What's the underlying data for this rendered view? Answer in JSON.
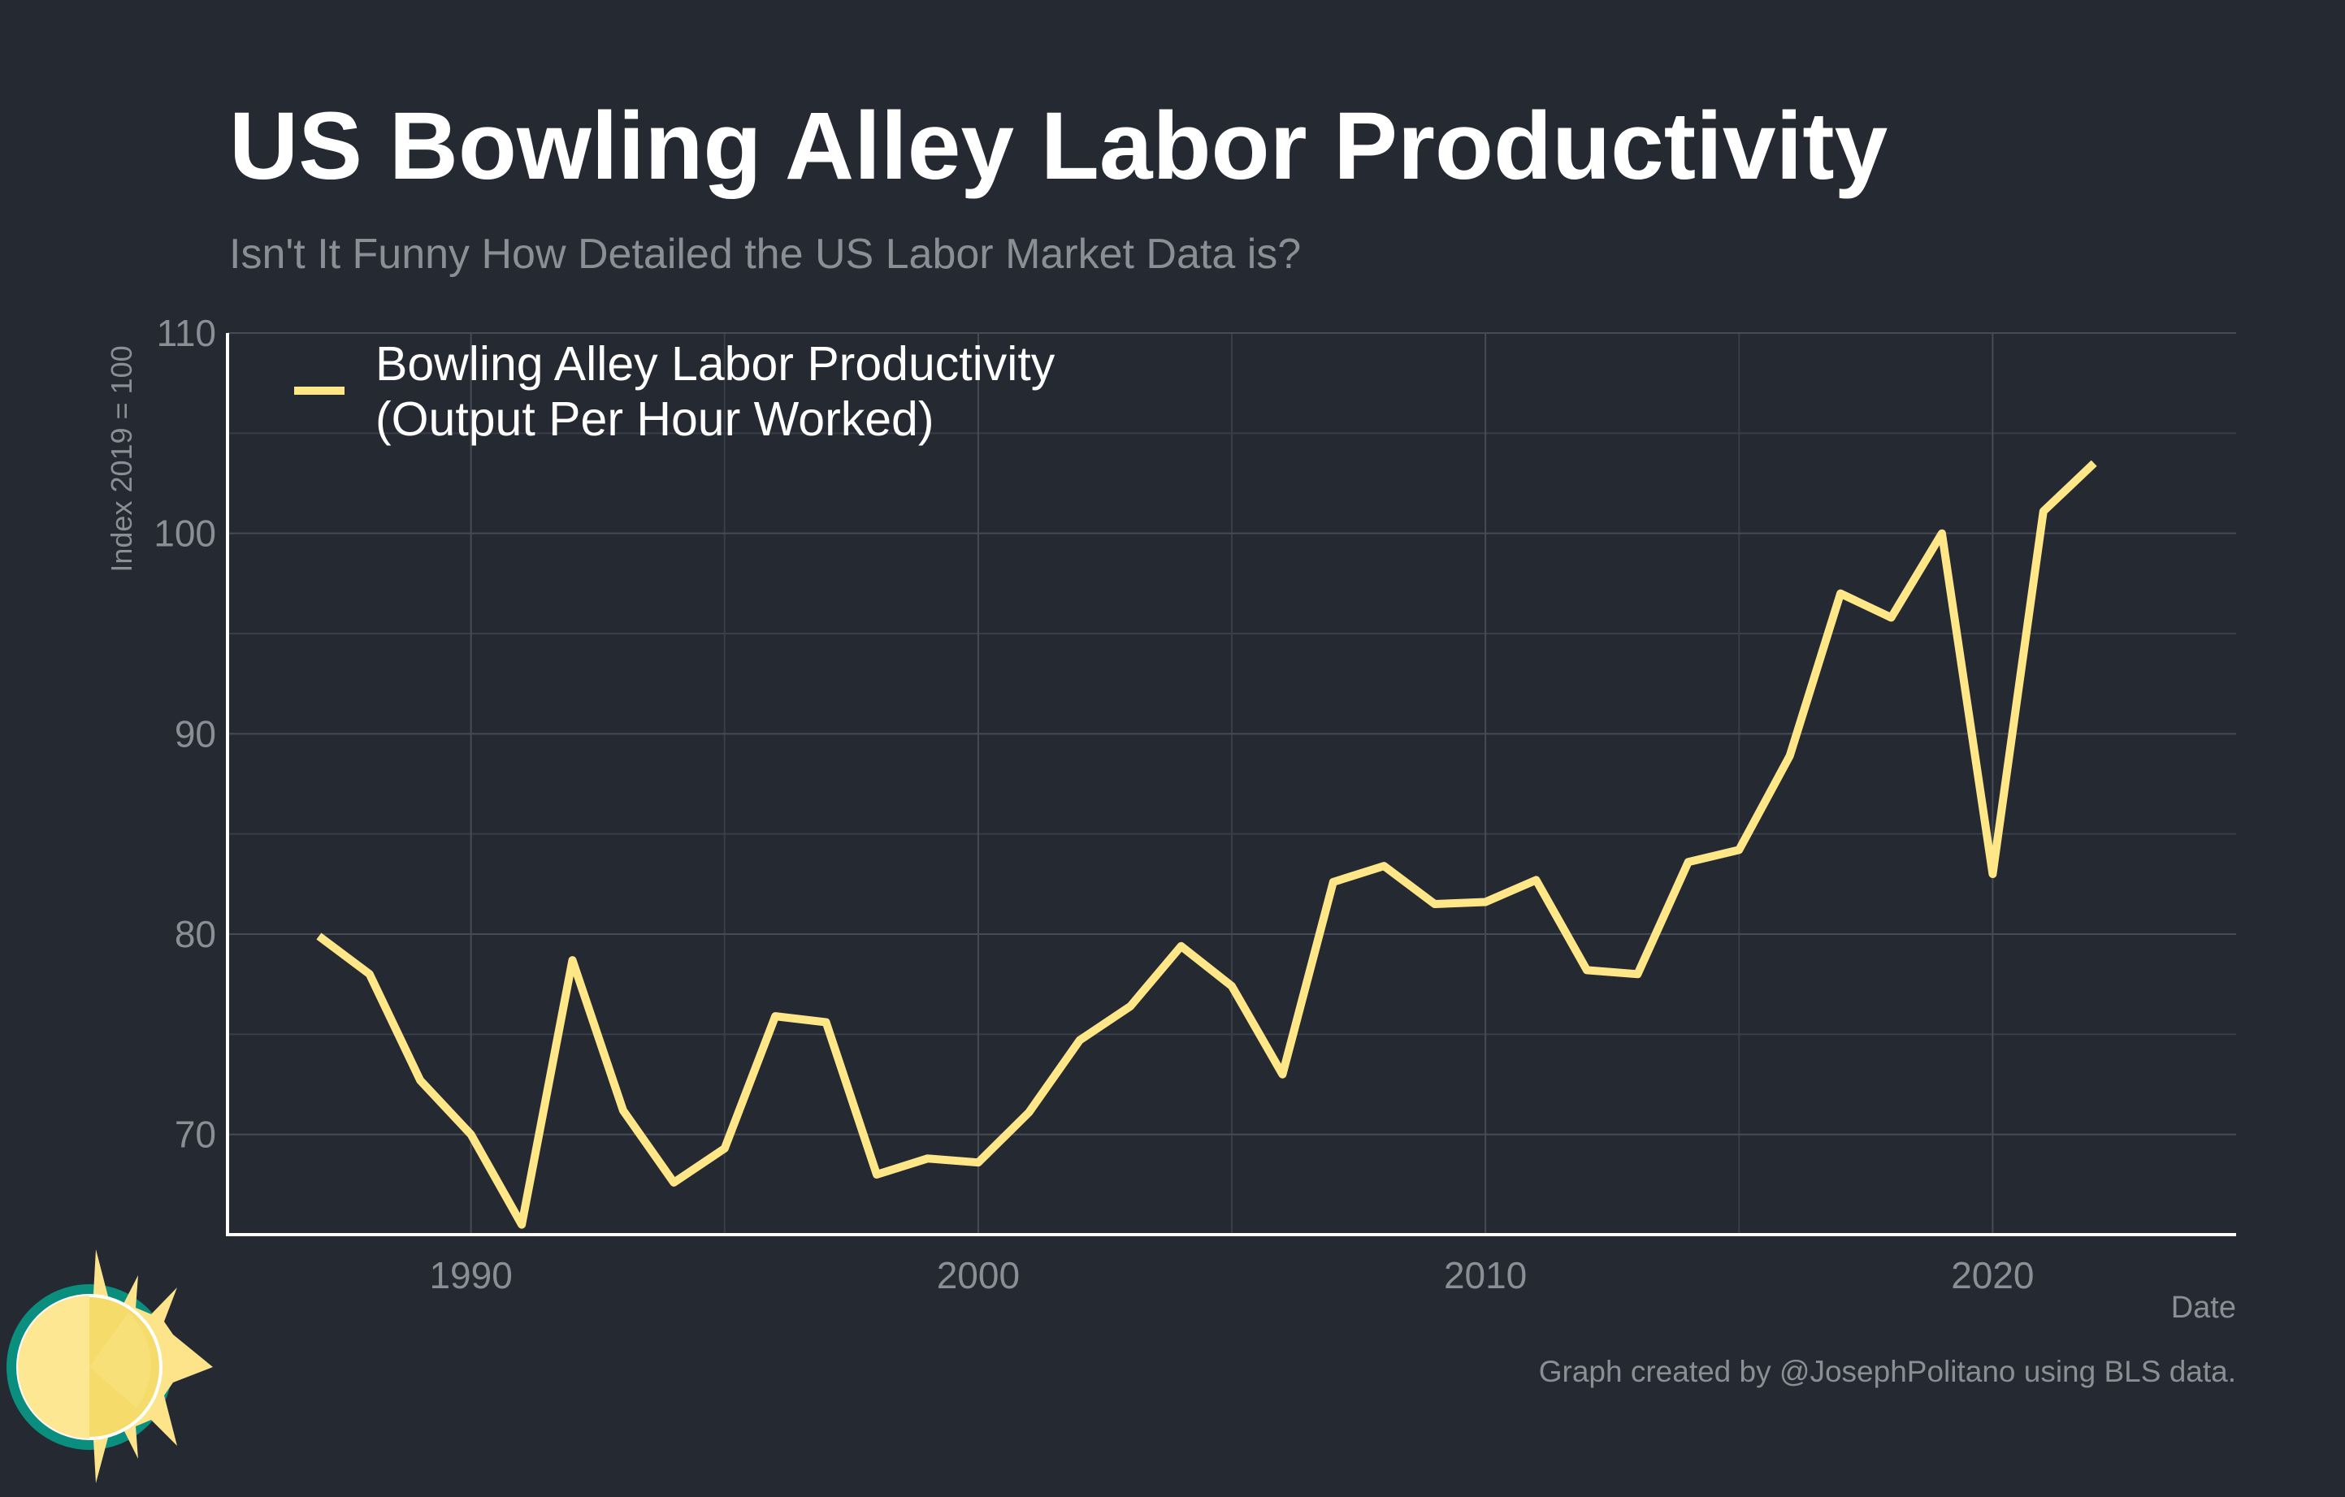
{
  "colors": {
    "background": "#252932",
    "series": "#ffe788",
    "title": "#ffffff",
    "muted": "#8b8e95",
    "grid_major": "#464b55",
    "grid_minor": "#393e47",
    "logo_teal": "#0a8f7e",
    "logo_sun": "#fde48a"
  },
  "logo_icon": "sun-logo-icon",
  "chart_data": {
    "type": "line",
    "title": "US Bowling Alley Labor Productivity",
    "subtitle": "Isn't It Funny How Detailed the US Labor Market Data is?",
    "xlabel": "Date",
    "ylabel": "Index 2019 = 100",
    "xlim": [
      1985.2,
      2024.8
    ],
    "ylim": [
      65,
      110
    ],
    "x_ticks": [
      1990,
      2000,
      2010,
      2020
    ],
    "x_minor_ticks": [
      1985,
      1995,
      2005,
      2015
    ],
    "y_ticks": [
      70,
      80,
      90,
      100,
      110
    ],
    "y_minor_ticks": [
      75,
      85,
      95,
      105
    ],
    "grid": true,
    "legend_position": "top-left",
    "caption": "Graph created by @JosephPolitano using BLS data.",
    "series": [
      {
        "name": "Bowling Alley Labor Productivity\n(Output Per Hour Worked)",
        "x": [
          1987,
          1988,
          1989,
          1990,
          1991,
          1992,
          1993,
          1994,
          1995,
          1996,
          1997,
          1998,
          1999,
          2000,
          2001,
          2002,
          2003,
          2004,
          2005,
          2006,
          2007,
          2008,
          2009,
          2010,
          2011,
          2012,
          2013,
          2014,
          2015,
          2016,
          2017,
          2018,
          2019,
          2020,
          2021,
          2022
        ],
        "y": [
          79.9,
          78.0,
          72.7,
          70.0,
          65.5,
          78.7,
          71.2,
          67.6,
          69.3,
          75.9,
          75.6,
          68.0,
          68.8,
          68.6,
          71.1,
          74.7,
          76.4,
          79.4,
          77.4,
          73.0,
          82.6,
          83.4,
          81.5,
          81.6,
          82.7,
          78.2,
          78.0,
          83.6,
          84.2,
          88.9,
          97.0,
          95.8,
          100.0,
          83.0,
          101.1,
          103.5
        ]
      }
    ]
  }
}
